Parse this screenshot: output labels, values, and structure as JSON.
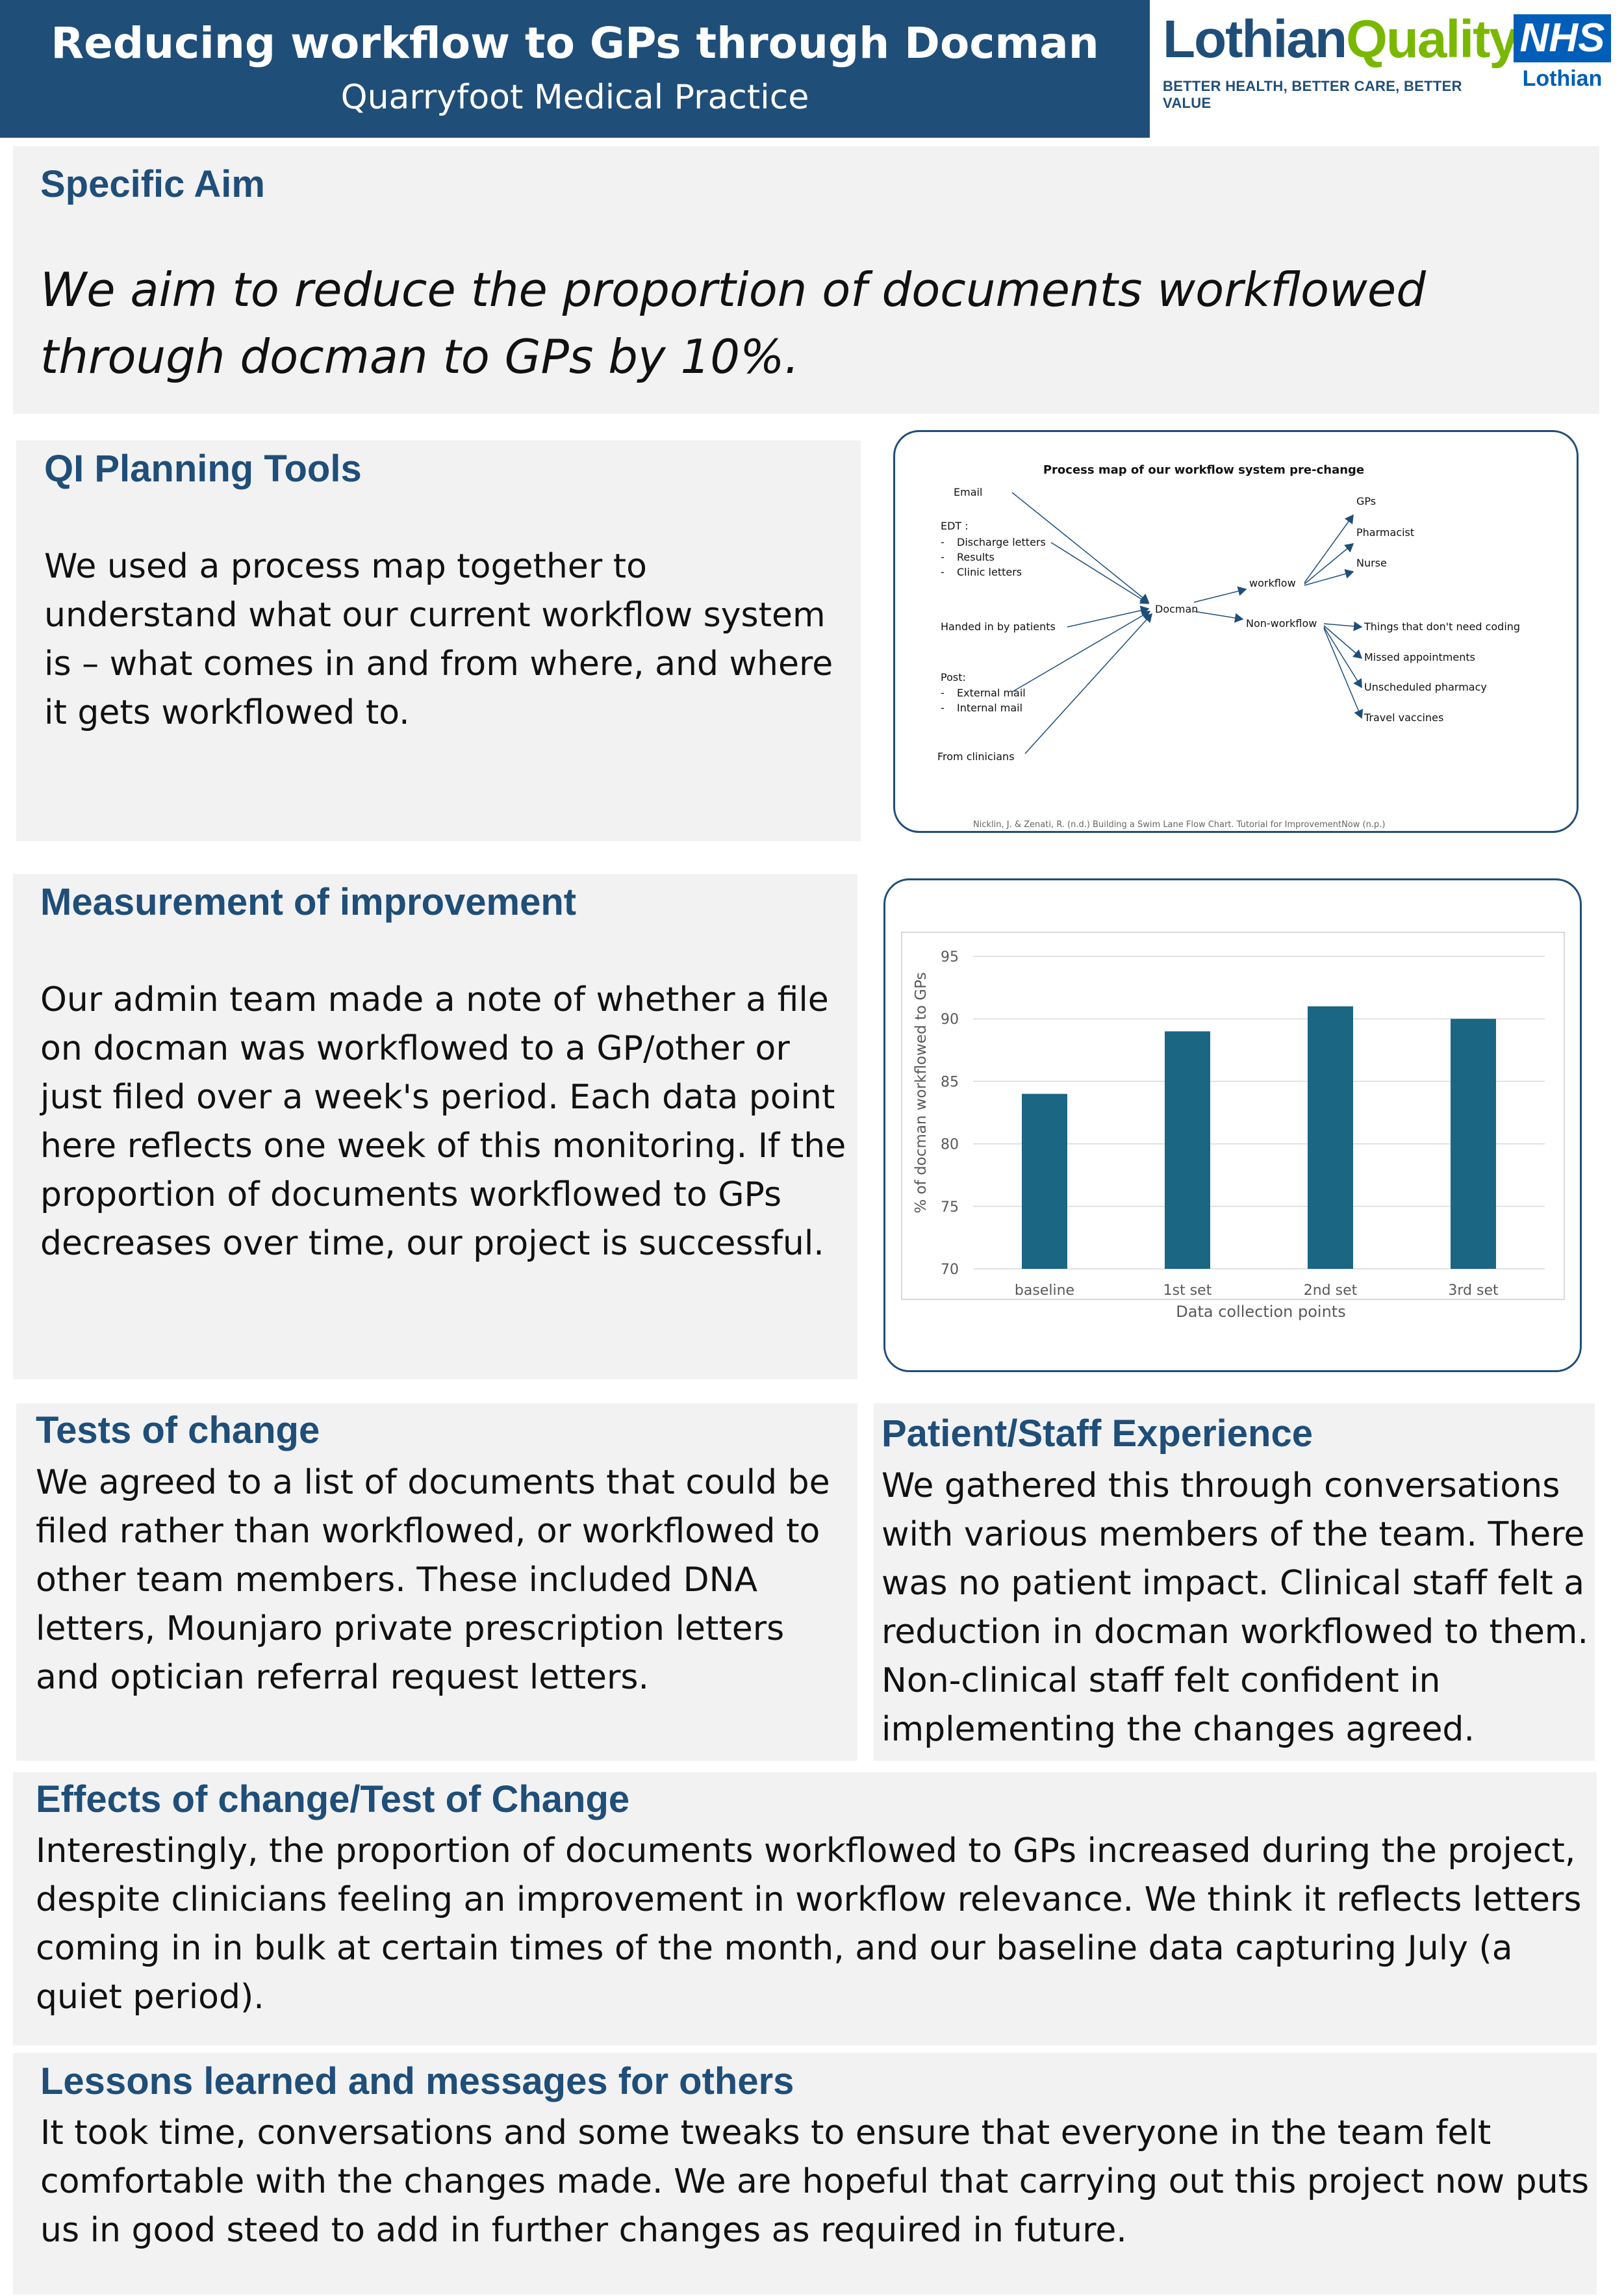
{
  "header": {
    "title": "Reducing workflow to GPs through Docman",
    "subtitle": "Quarryfoot Medical Practice",
    "logo_lothian_quality": {
      "part1": "Lothian",
      "part2": "Quality",
      "tagline": "BETTER HEALTH, BETTER CARE, BETTER VALUE"
    },
    "logo_nhs": {
      "mark": "NHS",
      "region": "Lothian"
    }
  },
  "aim": {
    "heading": "Specific Aim",
    "text": "We aim to reduce the proportion of documents workflowed through docman to GPs by 10%."
  },
  "qi_tools": {
    "heading": "QI Planning Tools",
    "text": "We used a process map together to understand what our current workflow system is – what comes in and from where, and where it gets workflowed to."
  },
  "process_map": {
    "title": "Process map of our workflow system pre-change",
    "center": "Docman",
    "inputs": {
      "email": "Email",
      "edt_label": "EDT :",
      "edt_items": [
        "Discharge letters",
        "Results",
        "Clinic letters"
      ],
      "handed": "Handed in by patients",
      "post_label": "Post:",
      "post_items": [
        "External mail",
        "Internal mail"
      ],
      "clinicians": "From clinicians"
    },
    "workflow": "workflow",
    "workflow_targets": [
      "GPs",
      "Pharmacist",
      "Nurse"
    ],
    "non_workflow": "Non-workflow",
    "non_workflow_targets": [
      "Things that don't need coding",
      "Missed appointments",
      "Unscheduled pharmacy",
      "Travel vaccines"
    ],
    "reference": "Nicklin, J. & Zenati, R. (n.d.) Building a Swim Lane Flow Chart. Tutorial for ImprovementNow (n.p.)"
  },
  "measurement": {
    "heading": "Measurement of improvement",
    "text": "Our admin team made a note of whether a file on docman was workflowed to a GP/other or just filed over a week's period. Each data point here reflects one week of this monitoring. If the proportion of documents workflowed to GPs decreases over time, our project is successful."
  },
  "chart_data": {
    "type": "bar",
    "categories": [
      "baseline",
      "1st set",
      "2nd set",
      "3rd set"
    ],
    "values": [
      84,
      89,
      91,
      90
    ],
    "title": "",
    "xlabel": "Data collection points",
    "ylabel": "% of docman workflowed to GPs",
    "ylim": [
      70,
      95
    ],
    "yticks": [
      70,
      75,
      80,
      85,
      90,
      95
    ],
    "grid": true,
    "bar_color": "#1b6683"
  },
  "tests": {
    "heading": "Tests of change",
    "text": "We agreed to a list of documents that could be filed rather than workflowed, or workflowed to other team members. These included DNA letters, Mounjaro private prescription letters and optician referral request letters."
  },
  "experience": {
    "heading": "Patient/Staff Experience",
    "text": "We gathered this through conversations with various members of the team. There was no patient impact. Clinical staff felt a reduction in docman workflowed to them. Non-clinical staff felt confident in implementing the changes agreed."
  },
  "effects": {
    "heading": "Effects of change/Test of Change",
    "text": "Interestingly, the proportion of documents workflowed to GPs increased during the project, despite clinicians feeling an improvement in workflow relevance. We think it reflects letters coming in in bulk at certain times of the month, and our baseline data capturing July (a quiet period)."
  },
  "lessons": {
    "heading": "Lessons learned and messages for others",
    "text": "It took time, conversations and some tweaks to ensure that everyone in the team felt comfortable with the changes made.  We are hopeful that carrying out this project now puts us in good steed to add in further changes as required in future."
  },
  "colors": {
    "brand_blue": "#1f4e79",
    "quality_green": "#7ab800",
    "nhs_blue": "#005eb8",
    "panel_grey": "#f2f2f2"
  }
}
